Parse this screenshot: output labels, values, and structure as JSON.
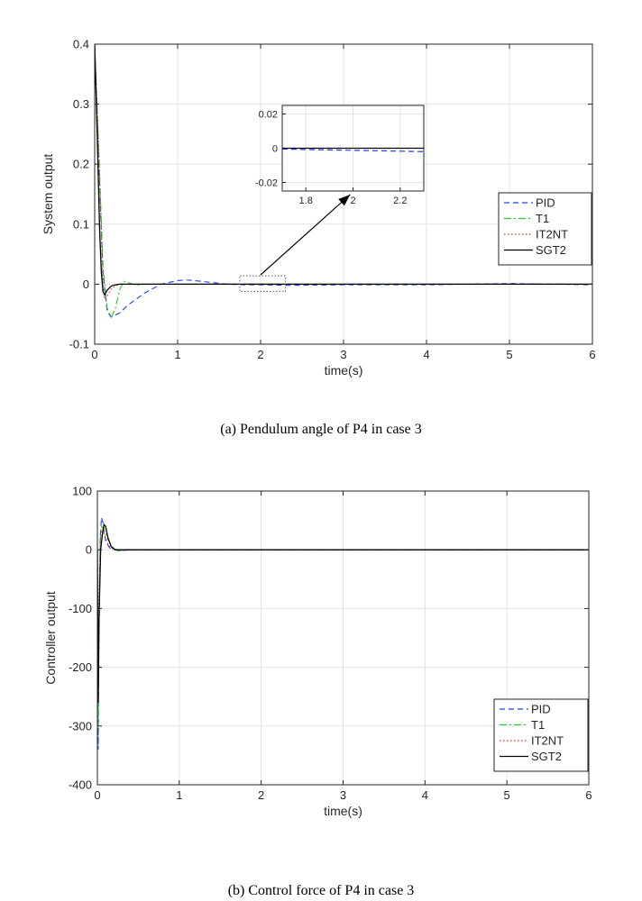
{
  "colors": {
    "PID": "#1f3fff",
    "T1": "#22cc22",
    "IT2NT": "#e0302a",
    "SGT2": "#000000",
    "grid": "#e3e3e3",
    "axis": "#262626"
  },
  "chart_data": [
    {
      "type": "line",
      "caption": "(a) Pendulum angle of P4 in case 3",
      "xlabel": "time(s)",
      "ylabel": "System output",
      "xlim": [
        0,
        6
      ],
      "ylim": [
        -0.1,
        0.4
      ],
      "xticks": [
        "0",
        "1",
        "2",
        "3",
        "4",
        "5",
        "6"
      ],
      "yticks": [
        "-0.1",
        "0",
        "0.1",
        "0.2",
        "0.3",
        "0.4"
      ],
      "grid": true,
      "legend_position": "right-middle",
      "series": [
        {
          "name": "PID",
          "style": "dashed",
          "x": [
            0,
            0.05,
            0.1,
            0.15,
            0.2,
            0.3,
            0.4,
            0.6,
            0.8,
            1.0,
            1.1,
            1.2,
            1.4,
            1.6,
            1.8,
            2.0,
            2.3,
            3,
            4,
            5,
            6
          ],
          "y": [
            0.4,
            0.2,
            0.02,
            -0.045,
            -0.055,
            -0.048,
            -0.035,
            -0.015,
            0.0,
            0.006,
            0.007,
            0.006,
            0.003,
            0.0,
            -0.001,
            -0.001,
            -0.002,
            -0.001,
            -0.001,
            0.001,
            -0.001
          ]
        },
        {
          "name": "T1",
          "style": "dashdot",
          "x": [
            0,
            0.05,
            0.1,
            0.15,
            0.2,
            0.25,
            0.3,
            0.35,
            0.4,
            0.5,
            0.6,
            0.8,
            1,
            2,
            3,
            4,
            5,
            6
          ],
          "y": [
            0.4,
            0.22,
            0.03,
            -0.04,
            -0.055,
            -0.04,
            -0.01,
            0.005,
            0.003,
            -0.002,
            0.0,
            0.0,
            0.0,
            0.0,
            0.0,
            0.0,
            0.0,
            0.0
          ]
        },
        {
          "name": "IT2NT",
          "style": "dotted",
          "x": [
            0,
            0.05,
            0.08,
            0.1,
            0.12,
            0.15,
            0.2,
            0.25,
            0.3,
            0.4,
            0.6,
            1,
            2,
            3,
            4,
            5,
            6
          ],
          "y": [
            0.4,
            0.22,
            0.08,
            0.0,
            -0.025,
            -0.02,
            -0.008,
            -0.003,
            0.0,
            0.0,
            0.0,
            0.0,
            0.0,
            0.0,
            0.0,
            0.0,
            0.0
          ]
        },
        {
          "name": "SGT2",
          "style": "solid",
          "x": [
            0,
            0.03,
            0.06,
            0.08,
            0.1,
            0.12,
            0.15,
            0.2,
            0.25,
            0.3,
            0.4,
            0.6,
            1,
            2,
            3,
            4,
            5,
            6
          ],
          "y": [
            0.4,
            0.25,
            0.09,
            0.02,
            -0.012,
            -0.018,
            -0.01,
            -0.003,
            -0.001,
            0.0,
            0.0,
            0.0,
            0.0,
            0.0,
            0.0,
            0.0,
            0.0,
            0.0
          ]
        }
      ],
      "inset": {
        "xlim": [
          1.7,
          2.3
        ],
        "ylim": [
          -0.025,
          0.025
        ],
        "xticks": [
          "1.8",
          "2",
          "2.2"
        ],
        "yticks": [
          "0.02",
          "0",
          "-0.02"
        ],
        "source_region": {
          "x": [
            1.75,
            2.3
          ],
          "y": [
            -0.012,
            0.014
          ]
        },
        "series": [
          {
            "name": "PID",
            "x": [
              1.7,
              1.9,
              2.1,
              2.3
            ],
            "y": [
              -0.0005,
              -0.001,
              -0.0015,
              -0.002
            ]
          },
          {
            "name": "SGT2",
            "x": [
              1.7,
              2.3
            ],
            "y": [
              0.0,
              0.0
            ]
          }
        ]
      }
    },
    {
      "type": "line",
      "caption": "(b) Control force of P4 in case 3",
      "xlabel": "time(s)",
      "ylabel": "Controller output",
      "xlim": [
        0,
        6
      ],
      "ylim": [
        -400,
        100
      ],
      "xticks": [
        "0",
        "1",
        "2",
        "3",
        "4",
        "5",
        "6"
      ],
      "yticks": [
        "100",
        "0",
        "-100",
        "-200",
        "-300",
        "-400"
      ],
      "grid": true,
      "legend_position": "bottom-right",
      "series": [
        {
          "name": "PID",
          "style": "dashed",
          "x": [
            0,
            0.01,
            0.02,
            0.035,
            0.05,
            0.07,
            0.1,
            0.15,
            0.2,
            0.3,
            0.5,
            1,
            2,
            3,
            4,
            5,
            6
          ],
          "y": [
            0,
            -340,
            -150,
            20,
            55,
            45,
            15,
            3,
            0,
            -1,
            0,
            0,
            0,
            0,
            0,
            0,
            0
          ]
        },
        {
          "name": "T1",
          "style": "dashdot",
          "x": [
            0,
            0.01,
            0.02,
            0.035,
            0.05,
            0.08,
            0.12,
            0.18,
            0.25,
            0.35,
            0.5,
            1,
            2,
            3,
            4,
            5,
            6
          ],
          "y": [
            0,
            -300,
            -120,
            15,
            40,
            35,
            20,
            5,
            -2,
            0,
            0,
            0,
            0,
            0,
            0,
            0,
            0
          ]
        },
        {
          "name": "IT2NT",
          "style": "dotted",
          "x": [
            0,
            0.01,
            0.02,
            0.04,
            0.06,
            0.09,
            0.13,
            0.18,
            0.25,
            0.4,
            1,
            2,
            3,
            4,
            5,
            6
          ],
          "y": [
            0,
            -200,
            -80,
            20,
            35,
            25,
            8,
            2,
            0,
            0,
            0,
            0,
            0,
            0,
            0,
            0
          ]
        },
        {
          "name": "SGT2",
          "style": "solid",
          "x": [
            0,
            0.01,
            0.02,
            0.04,
            0.06,
            0.08,
            0.1,
            0.13,
            0.17,
            0.22,
            0.3,
            0.5,
            1,
            2,
            3,
            4,
            5,
            6
          ],
          "y": [
            0,
            -260,
            -120,
            0,
            25,
            43,
            40,
            20,
            5,
            0,
            0,
            0,
            0,
            0,
            0,
            0,
            0,
            0
          ]
        }
      ]
    }
  ]
}
